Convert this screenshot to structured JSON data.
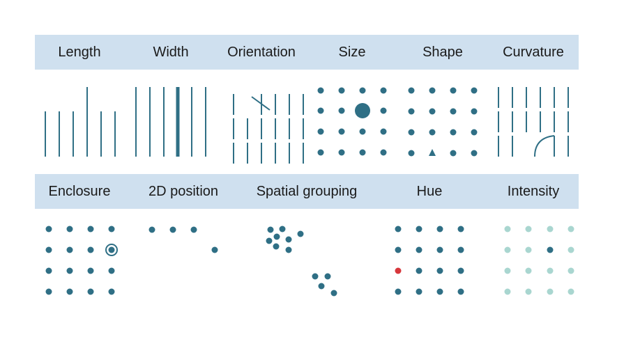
{
  "colors": {
    "header_band": "#cfe0ef",
    "mark": "#2f6f85",
    "highlight_red": "#d7373c",
    "light_teal": "#a9d6d0"
  },
  "row1": [
    {
      "label": "Length"
    },
    {
      "label": "Width"
    },
    {
      "label": "Orientation"
    },
    {
      "label": "Size"
    },
    {
      "label": "Shape"
    },
    {
      "label": "Curvature"
    }
  ],
  "row2": [
    {
      "label": "Enclosure"
    },
    {
      "label": "2D position"
    },
    {
      "label": "Spatial grouping"
    },
    {
      "label": "Hue"
    },
    {
      "label": "Intensity"
    }
  ]
}
